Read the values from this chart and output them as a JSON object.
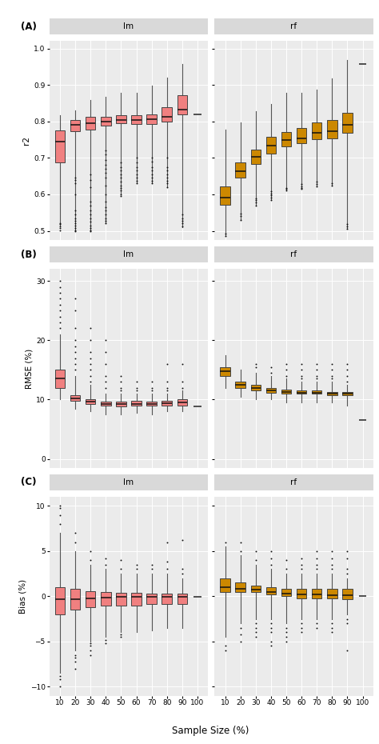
{
  "panel_labels": [
    "(A)",
    "(B)",
    "(C)"
  ],
  "col_labels": [
    "lm",
    "rf"
  ],
  "row_ylabels": [
    "r2",
    "RMSE (%)",
    "Bias (%)"
  ],
  "xlabel": "Sample Size (%)",
  "xtick_labels": [
    "10",
    "20",
    "30",
    "40",
    "50",
    "60",
    "70",
    "80",
    "90",
    "100"
  ],
  "lm_color": "#F08080",
  "rf_color": "#CC8800",
  "background_color": "#EBEBEB",
  "strip_bg": "#D9D9D9",
  "lm_r2": {
    "whislo": [
      0.515,
      0.5,
      0.5,
      0.52,
      0.6,
      0.63,
      0.63,
      0.62,
      0.51,
      null
    ],
    "q1": [
      0.688,
      0.773,
      0.778,
      0.788,
      0.795,
      0.793,
      0.794,
      0.8,
      0.82,
      null
    ],
    "med": [
      0.745,
      0.79,
      0.795,
      0.8,
      0.803,
      0.804,
      0.807,
      0.813,
      0.833,
      null
    ],
    "q3": [
      0.775,
      0.804,
      0.813,
      0.813,
      0.818,
      0.818,
      0.82,
      0.838,
      0.872,
      null
    ],
    "whishi": [
      0.818,
      0.83,
      0.858,
      0.868,
      0.878,
      0.878,
      0.898,
      0.92,
      0.958,
      null
    ],
    "single_val": [
      null,
      null,
      null,
      null,
      null,
      null,
      null,
      null,
      null,
      0.82
    ],
    "fliers_low": [
      [
        0.502,
        0.508,
        0.512,
        0.518,
        0.522
      ],
      [
        0.5,
        0.502,
        0.508,
        0.515,
        0.52,
        0.528,
        0.535,
        0.545,
        0.555,
        0.6,
        0.63,
        0.64,
        0.645
      ],
      [
        0.5,
        0.502,
        0.508,
        0.515,
        0.525,
        0.535,
        0.545,
        0.555,
        0.57,
        0.58,
        0.62,
        0.64,
        0.655
      ],
      [
        0.52,
        0.528,
        0.535,
        0.545,
        0.555,
        0.565,
        0.58,
        0.6,
        0.625,
        0.645,
        0.66,
        0.67,
        0.68,
        0.695,
        0.71,
        0.72
      ],
      [
        0.595,
        0.6,
        0.61,
        0.618,
        0.625,
        0.635,
        0.645,
        0.655,
        0.665,
        0.675,
        0.688
      ],
      [
        0.63,
        0.638,
        0.645,
        0.655,
        0.665,
        0.675,
        0.688,
        0.7
      ],
      [
        0.63,
        0.638,
        0.645,
        0.655,
        0.665,
        0.675,
        0.69,
        0.7
      ],
      [
        0.62,
        0.63,
        0.638,
        0.645,
        0.655,
        0.665,
        0.675,
        0.7
      ],
      [
        0.512,
        0.52,
        0.528,
        0.535,
        0.545
      ],
      []
    ],
    "fliers_high": [
      [],
      [],
      [],
      [],
      [],
      [],
      [],
      [],
      [],
      []
    ]
  },
  "rf_r2": {
    "whislo": [
      0.485,
      0.53,
      0.57,
      0.585,
      0.61,
      0.615,
      0.622,
      0.625,
      0.505,
      null
    ],
    "q1": [
      0.572,
      0.645,
      0.683,
      0.712,
      0.732,
      0.74,
      0.752,
      0.753,
      0.768,
      null
    ],
    "med": [
      0.592,
      0.663,
      0.703,
      0.733,
      0.748,
      0.753,
      0.768,
      0.773,
      0.79,
      null
    ],
    "q3": [
      0.622,
      0.688,
      0.723,
      0.758,
      0.772,
      0.783,
      0.798,
      0.803,
      0.823,
      null
    ],
    "whishi": [
      0.778,
      0.798,
      0.828,
      0.848,
      0.878,
      0.878,
      0.888,
      0.918,
      0.968,
      null
    ],
    "single_val": [
      null,
      null,
      null,
      null,
      null,
      null,
      null,
      null,
      null,
      0.958
    ],
    "fliers_low": [
      [
        0.485,
        0.492
      ],
      [
        0.53,
        0.54,
        0.548
      ],
      [
        0.57,
        0.578,
        0.585,
        0.59
      ],
      [
        0.585,
        0.592,
        0.598,
        0.602,
        0.608
      ],
      [
        0.61,
        0.615,
        0.618
      ],
      [
        0.615,
        0.618,
        0.622,
        0.628
      ],
      [
        0.622,
        0.628,
        0.635
      ],
      [
        0.625,
        0.63
      ],
      [
        0.505,
        0.512,
        0.518
      ],
      []
    ],
    "fliers_high": [
      [],
      [],
      [],
      [],
      [],
      [],
      [],
      [],
      [],
      []
    ]
  },
  "lm_rmse": {
    "whislo": [
      null,
      null,
      null,
      null,
      null,
      null,
      null,
      null,
      null,
      null
    ],
    "q1": [
      12.0,
      9.8,
      9.2,
      9.0,
      8.8,
      9.0,
      9.0,
      9.0,
      9.0,
      null
    ],
    "med": [
      13.5,
      10.2,
      9.6,
      9.3,
      9.2,
      9.3,
      9.3,
      9.4,
      9.5,
      null
    ],
    "q3": [
      15.0,
      10.8,
      10.0,
      9.7,
      9.6,
      9.8,
      9.7,
      9.8,
      10.0,
      null
    ],
    "whishi": [
      21.0,
      14.0,
      12.5,
      11.0,
      11.0,
      11.0,
      11.0,
      11.0,
      11.5,
      null
    ],
    "actual_whislo": [
      10.0,
      8.5,
      8.0,
      7.5,
      7.5,
      7.8,
      7.5,
      8.0,
      8.0,
      null
    ],
    "single_val": [
      null,
      null,
      null,
      null,
      null,
      null,
      null,
      null,
      null,
      8.8
    ],
    "fliers_low": [
      [],
      [],
      [],
      [],
      [],
      [],
      [],
      [],
      [],
      []
    ],
    "fliers_high": [
      [
        22,
        23,
        24,
        25,
        26,
        27,
        28,
        29,
        30
      ],
      [
        15,
        16,
        17,
        18,
        19,
        20,
        22,
        25,
        27
      ],
      [
        13,
        14,
        15,
        16,
        17,
        18,
        20,
        22
      ],
      [
        12,
        13,
        14,
        16,
        18,
        20
      ],
      [
        11.5,
        12,
        13,
        14
      ],
      [
        11.5,
        12,
        13
      ],
      [
        11.5,
        12,
        13
      ],
      [
        11.5,
        12,
        13,
        16
      ],
      [
        12,
        13,
        16
      ],
      []
    ]
  },
  "rf_rmse": {
    "whislo": [
      12.0,
      10.5,
      10.0,
      10.0,
      9.5,
      9.5,
      9.5,
      9.5,
      9.0,
      null
    ],
    "q1": [
      14.0,
      12.0,
      11.5,
      11.2,
      11.0,
      11.0,
      11.0,
      10.8,
      10.8,
      null
    ],
    "med": [
      14.8,
      12.5,
      12.0,
      11.5,
      11.3,
      11.2,
      11.2,
      11.0,
      11.0,
      null
    ],
    "q3": [
      15.5,
      13.0,
      12.5,
      12.0,
      11.7,
      11.5,
      11.5,
      11.3,
      11.3,
      null
    ],
    "whishi": [
      17.5,
      15.0,
      14.5,
      14.0,
      13.5,
      13.0,
      13.0,
      13.0,
      12.5,
      null
    ],
    "actual_whislo": [
      12.0,
      10.5,
      10.0,
      10.0,
      9.5,
      9.5,
      9.5,
      9.5,
      9.0,
      null
    ],
    "single_val": [
      null,
      null,
      null,
      null,
      null,
      null,
      null,
      null,
      null,
      6.5
    ],
    "fliers_low": [
      [],
      [],
      [],
      [],
      [],
      [],
      [],
      [],
      [],
      []
    ],
    "fliers_high": [
      [],
      [],
      [
        15.5,
        16
      ],
      [
        14.5,
        15.5
      ],
      [
        14,
        15,
        16
      ],
      [
        13.5,
        14,
        15,
        16
      ],
      [
        13.5,
        14,
        15,
        16
      ],
      [
        13.5,
        14,
        15,
        16
      ],
      [
        13,
        14,
        15,
        16
      ],
      []
    ]
  },
  "lm_bias": {
    "whislo": [
      -8.5,
      -6.0,
      -5.0,
      -4.5,
      -4.0,
      -4.0,
      -3.8,
      -3.5,
      -3.5,
      null
    ],
    "q1": [
      -2.0,
      -1.5,
      -1.2,
      -1.0,
      -1.0,
      -1.0,
      -0.9,
      -0.9,
      -0.9,
      null
    ],
    "med": [
      -0.3,
      -0.3,
      -0.2,
      -0.15,
      -0.1,
      -0.1,
      -0.1,
      -0.1,
      -0.1,
      null
    ],
    "q3": [
      1.0,
      0.8,
      0.6,
      0.5,
      0.4,
      0.4,
      0.3,
      0.3,
      0.3,
      null
    ],
    "whishi": [
      7.0,
      5.0,
      3.5,
      3.0,
      2.5,
      2.5,
      2.5,
      2.5,
      2.0,
      null
    ],
    "single_val": [
      null,
      null,
      null,
      null,
      null,
      null,
      null,
      null,
      null,
      -0.05
    ],
    "fliers_low": [
      [
        -10.0,
        -9.2,
        -8.8
      ],
      [
        -8.0,
        -7.2,
        -6.8,
        -6.5
      ],
      [
        -6.5,
        -6.0,
        -5.5,
        -5.2
      ],
      [
        -5.2,
        -4.8
      ],
      [
        -4.5,
        -4.2
      ],
      [],
      [],
      [],
      [],
      []
    ],
    "fliers_high": [
      [
        8.0,
        9.0,
        9.8,
        10.0
      ],
      [
        6.0,
        7.0
      ],
      [
        4.0,
        5.0
      ],
      [
        3.5,
        4.2
      ],
      [
        3.0,
        4.0
      ],
      [
        3.0,
        3.5
      ],
      [
        3.0,
        3.5
      ],
      [
        3.0,
        3.8,
        6.0
      ],
      [
        2.5,
        3.0,
        6.2
      ],
      []
    ]
  },
  "rf_bias": {
    "whislo": [
      -4.5,
      -3.0,
      -2.5,
      -2.5,
      -3.0,
      -2.5,
      -2.5,
      -2.5,
      -2.0,
      null
    ],
    "q1": [
      0.5,
      0.5,
      0.5,
      0.2,
      0.0,
      -0.2,
      -0.2,
      -0.2,
      -0.3,
      null
    ],
    "med": [
      1.0,
      0.8,
      0.7,
      0.5,
      0.3,
      0.2,
      0.2,
      0.1,
      0.1,
      null
    ],
    "q3": [
      2.0,
      1.5,
      1.2,
      1.0,
      0.8,
      0.8,
      0.8,
      0.8,
      0.8,
      null
    ],
    "whishi": [
      5.5,
      4.5,
      3.5,
      3.0,
      2.5,
      2.5,
      2.5,
      2.5,
      2.0,
      null
    ],
    "single_val": [
      null,
      null,
      null,
      null,
      null,
      null,
      null,
      null,
      null,
      0.05
    ],
    "fliers_low": [
      [
        -5.5,
        -6.0
      ],
      [
        -3.5,
        -4.2,
        -5.0
      ],
      [
        -3.0,
        -3.5,
        -4.0,
        -4.5
      ],
      [
        -3.0,
        -3.5,
        -4.0,
        -5.0,
        -5.5
      ],
      [
        -3.5,
        -4.0,
        -4.5,
        -5.0
      ],
      [
        -3.0,
        -3.5,
        -4.0
      ],
      [
        -3.0,
        -3.5
      ],
      [
        -3.0,
        -3.5,
        -4.0
      ],
      [
        -2.5,
        -3.0,
        -6.0
      ],
      []
    ],
    "fliers_high": [
      [
        6.0
      ],
      [
        5.0,
        6.0
      ],
      [
        4.0,
        5.0
      ],
      [
        3.5,
        4.2,
        5.0
      ],
      [
        3.0,
        4.0
      ],
      [
        3.0,
        3.5,
        4.2
      ],
      [
        3.0,
        3.5,
        4.2,
        5.0
      ],
      [
        3.0,
        3.5,
        4.2,
        5.0
      ],
      [
        2.5,
        3.0,
        4.2,
        5.0
      ],
      []
    ]
  }
}
